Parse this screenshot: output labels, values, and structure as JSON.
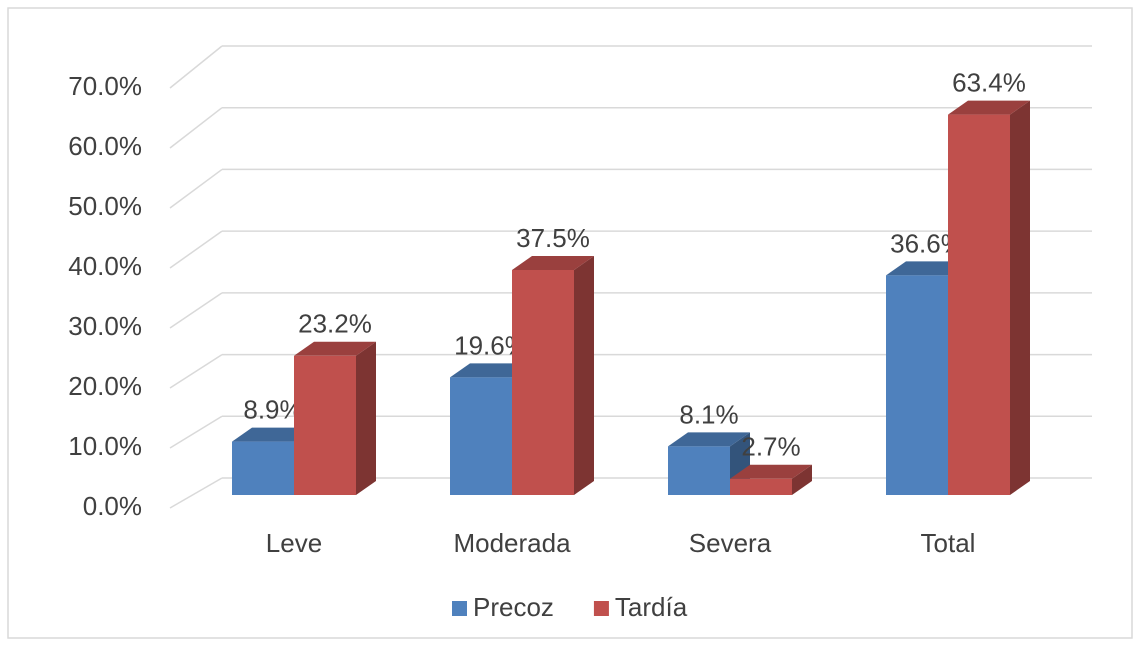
{
  "chart_data": {
    "type": "bar3d",
    "categories": [
      "Leve",
      "Moderada",
      "Severa",
      "Total"
    ],
    "series": [
      {
        "name": "Precoz",
        "color": "#4f81bd",
        "values": [
          8.9,
          19.6,
          8.1,
          36.6
        ],
        "value_labels": [
          "8.9%",
          "19.6%",
          "8.1%",
          "36.6%"
        ]
      },
      {
        "name": "Tardía",
        "color": "#c0504d",
        "values": [
          23.2,
          37.5,
          2.7,
          63.4
        ],
        "value_labels": [
          "23.2%",
          "37.5%",
          "2.7%",
          "63.4%"
        ]
      }
    ],
    "ylim": [
      0,
      70
    ],
    "yticks": [
      {
        "value": 0,
        "label": "0.0%"
      },
      {
        "value": 10,
        "label": "10.0%"
      },
      {
        "value": 20,
        "label": "20.0%"
      },
      {
        "value": 30,
        "label": "30.0%"
      },
      {
        "value": 40,
        "label": "40.0%"
      },
      {
        "value": 50,
        "label": "50.0%"
      },
      {
        "value": 60,
        "label": "60.0%"
      },
      {
        "value": 70,
        "label": "70.0%"
      }
    ],
    "grid": true,
    "legend": "bottom"
  }
}
